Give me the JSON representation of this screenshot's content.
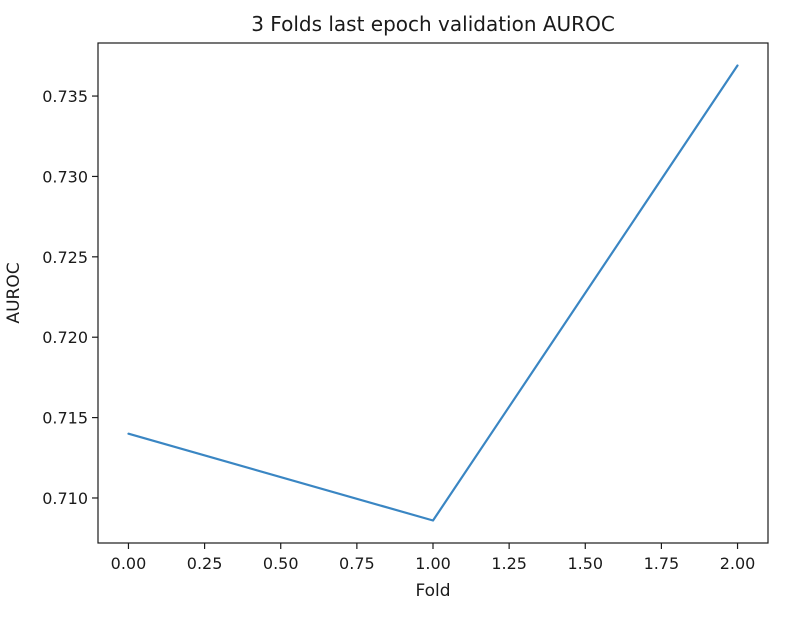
{
  "chart_data": {
    "type": "line",
    "title": "3 Folds last epoch validation AUROC",
    "xlabel": "Fold",
    "ylabel": "AUROC",
    "xlim": [
      -0.1,
      2.1
    ],
    "ylim": [
      0.7072,
      0.7383
    ],
    "x_ticks": [
      0.0,
      0.25,
      0.5,
      0.75,
      1.0,
      1.25,
      1.5,
      1.75,
      2.0
    ],
    "x_tick_labels": [
      "0.00",
      "0.25",
      "0.50",
      "0.75",
      "1.00",
      "1.25",
      "1.50",
      "1.75",
      "2.00"
    ],
    "y_ticks": [
      0.71,
      0.715,
      0.72,
      0.725,
      0.73,
      0.735
    ],
    "y_tick_labels": [
      "0.710",
      "0.715",
      "0.720",
      "0.725",
      "0.730",
      "0.735"
    ],
    "grid": false,
    "series": [
      {
        "x": [
          0,
          1,
          2
        ],
        "values": [
          0.714,
          0.7086,
          0.7369
        ],
        "color": "#3a86c3"
      }
    ]
  }
}
